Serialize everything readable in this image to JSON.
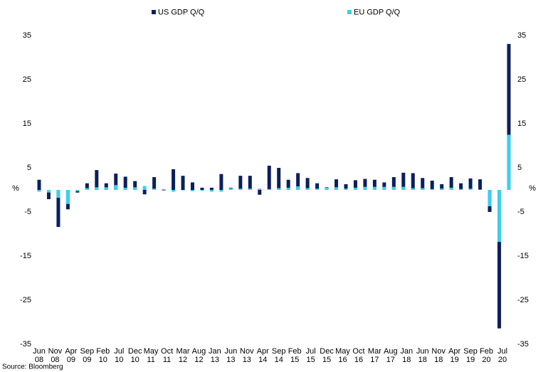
{
  "chart_data": {
    "type": "bar",
    "legend": "top",
    "y_label": "%",
    "y2_label": "%",
    "source": "Source: Bloomberg",
    "x": [
      "Jun 08",
      "Sep 08",
      "Dec 08",
      "Mar 09",
      "Jun 09",
      "Sep 09",
      "Dec 09",
      "Mar 10",
      "Jun 10",
      "Sep 10",
      "Dec 10",
      "Mar 11",
      "Jun 11",
      "Sep 11",
      "Dec 11",
      "Mar 12",
      "Jun 12",
      "Sep 12",
      "Dec 12",
      "Mar 13",
      "Jun 13",
      "Sep 13",
      "Dec 13",
      "Mar 14",
      "Jun 14",
      "Sep 14",
      "Dec 14",
      "Mar 15",
      "Jun 15",
      "Sep 15",
      "Dec 15",
      "Mar 16",
      "Jun 16",
      "Sep 16",
      "Dec 16",
      "Mar 17",
      "Jun 17",
      "Sep 17",
      "Dec 17",
      "Mar 18",
      "Jun 18",
      "Sep 18",
      "Dec 18",
      "Mar 19",
      "Jun 19",
      "Sep 19",
      "Dec 19",
      "Mar 20",
      "Jun 20",
      "Sep 20"
    ],
    "series": [
      {
        "name": "US GDP Q/Q",
        "color": "#0c1f5c",
        "values": [
          2.3,
          -2.1,
          -8.4,
          -4.4,
          -0.6,
          1.5,
          4.5,
          1.5,
          3.7,
          3.0,
          2.0,
          -1.0,
          2.9,
          -0.1,
          4.7,
          3.2,
          1.7,
          0.5,
          0.5,
          3.6,
          0.5,
          3.2,
          3.2,
          -1.1,
          5.5,
          5.0,
          2.3,
          3.8,
          2.7,
          1.5,
          0.6,
          2.4,
          1.3,
          2.2,
          2.5,
          2.3,
          1.7,
          2.9,
          3.9,
          3.8,
          2.7,
          2.1,
          1.3,
          2.9,
          1.5,
          2.6,
          2.4,
          -5.0,
          -31.4,
          33.1
        ]
      },
      {
        "name": "EU GDP Q/Q",
        "color": "#3ccfef",
        "values": [
          -0.4,
          -0.6,
          -1.8,
          -3.2,
          -0.3,
          0.4,
          0.6,
          0.6,
          1.1,
          0.5,
          0.6,
          0.9,
          0.3,
          0.2,
          -0.4,
          -0.1,
          -0.3,
          -0.2,
          -0.4,
          -0.4,
          0.4,
          0.3,
          0.3,
          0.3,
          0.2,
          0.4,
          0.5,
          0.8,
          0.4,
          0.3,
          0.5,
          0.6,
          0.3,
          0.5,
          0.7,
          0.7,
          0.7,
          0.7,
          0.7,
          0.4,
          0.4,
          0.2,
          0.3,
          0.5,
          0.2,
          0.3,
          0.1,
          -3.7,
          -11.8,
          12.5
        ]
      }
    ],
    "xticks": [
      "Jun 08",
      "Nov 08",
      "Apr 09",
      "Sep 09",
      "Feb 10",
      "Jul 10",
      "Dec 10",
      "May 11",
      "Oct 11",
      "Mar 12",
      "Aug 12",
      "Jan 13",
      "Jun 13",
      "Nov 13",
      "Apr 14",
      "Sep 14",
      "Feb 15",
      "Jul 15",
      "Dec 15",
      "May 16",
      "Oct 16",
      "Mar 17",
      "Aug 17",
      "Jan 18",
      "Jun 18",
      "Nov 18",
      "Apr 19",
      "Sep 19",
      "Feb 20",
      "Jul 20"
    ],
    "ylim": [
      -35,
      35
    ],
    "yticks": [
      35,
      25,
      15,
      5,
      -5,
      -15,
      -25,
      -35
    ],
    "y2lim": [
      -35,
      35
    ],
    "y2ticks": [
      35,
      25,
      15,
      5,
      -5,
      -15,
      -25,
      -35
    ]
  }
}
